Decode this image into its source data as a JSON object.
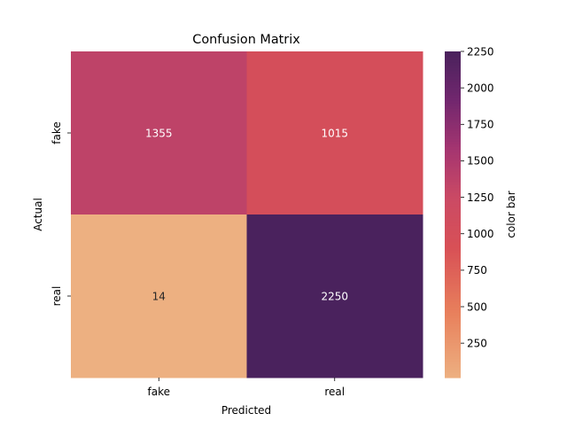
{
  "chart_data": {
    "type": "heatmap",
    "title": "Confusion Matrix",
    "xlabel": "Predicted",
    "ylabel": "Actual",
    "x_categories": [
      "fake",
      "real"
    ],
    "y_categories": [
      "fake",
      "real"
    ],
    "values": [
      [
        1355,
        1015
      ],
      [
        14,
        2250
      ]
    ],
    "colormap": "flare",
    "colorbar": {
      "label": "color bar",
      "vmin": 14,
      "vmax": 2250,
      "ticks": [
        250,
        500,
        750,
        1000,
        1250,
        1500,
        1750,
        2000,
        2250
      ]
    },
    "grid": false
  }
}
